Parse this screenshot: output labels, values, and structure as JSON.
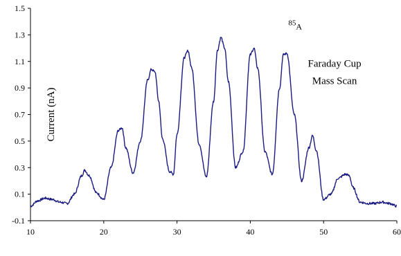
{
  "chart_data": {
    "type": "line",
    "title": "",
    "xlabel": "",
    "ylabel": "Current (nA)",
    "xlim": [
      10,
      60
    ],
    "ylim": [
      -0.1,
      1.5
    ],
    "x_ticks": [
      10,
      20,
      30,
      40,
      50,
      60
    ],
    "y_ticks": [
      -0.1,
      0.1,
      0.3,
      0.5,
      0.7,
      0.9,
      1.1,
      1.3,
      1.5
    ],
    "x_tick_labels": [
      "10",
      "20",
      "30",
      "40",
      "50",
      "60"
    ],
    "y_tick_labels": [
      "-0.1",
      "0.1",
      "0.3",
      "0.5",
      "0.7",
      "0.9",
      "1.1",
      "1.3",
      "1.5"
    ],
    "grid": false,
    "line_color": "#1a1a80",
    "annotations": [
      {
        "text": "Faraday Cup",
        "x": 51.5,
        "y": 1.06
      },
      {
        "text": "Mass Scan",
        "x": 51.5,
        "y": 0.93
      },
      {
        "sup": "85",
        "text": "A",
        "x": 45.2,
        "y": 1.34
      }
    ],
    "series": [
      {
        "x": [
          10,
          11,
          12,
          13,
          14,
          15,
          16,
          17,
          17.4,
          18,
          19,
          20,
          21,
          22,
          22.5,
          23,
          24,
          25,
          26,
          26.5,
          27,
          27.5,
          28,
          29,
          29.5,
          30,
          31,
          31.5,
          32,
          33,
          34,
          35,
          35.5,
          36,
          36.5,
          37,
          38,
          39,
          40,
          40.5,
          41,
          42,
          43,
          44,
          44.5,
          45,
          46,
          47,
          48,
          48.5,
          49,
          50,
          51,
          52,
          53,
          53.5,
          54,
          55,
          56,
          57,
          58,
          59,
          60
        ],
        "values": [
          0.01,
          0.05,
          0.07,
          0.06,
          0.04,
          0.03,
          0.1,
          0.24,
          0.28,
          0.24,
          0.11,
          0.06,
          0.3,
          0.58,
          0.6,
          0.45,
          0.26,
          0.5,
          0.96,
          1.04,
          1.02,
          0.8,
          0.52,
          0.27,
          0.25,
          0.55,
          1.13,
          1.18,
          1.05,
          0.48,
          0.23,
          0.8,
          1.18,
          1.28,
          1.2,
          0.95,
          0.3,
          0.42,
          1.15,
          1.2,
          1.05,
          0.42,
          0.25,
          0.9,
          1.15,
          1.16,
          0.7,
          0.2,
          0.45,
          0.54,
          0.43,
          0.06,
          0.1,
          0.22,
          0.25,
          0.24,
          0.15,
          0.04,
          0.03,
          0.03,
          0.04,
          0.03,
          0.01
        ]
      }
    ]
  }
}
